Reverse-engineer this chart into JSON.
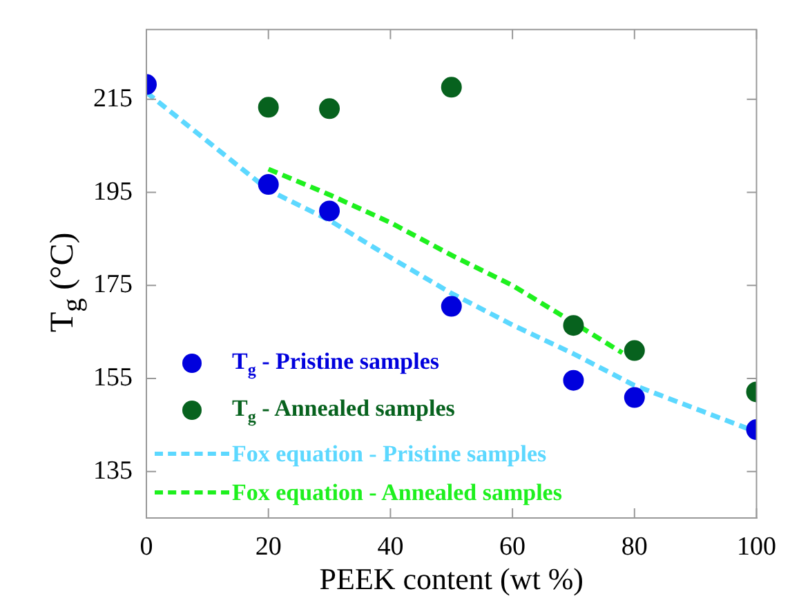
{
  "chart_data": {
    "type": "scatter",
    "xlabel": "PEEK content (wt %)",
    "ylabel": "T$_{g}$ (°C)",
    "xlim": [
      0,
      100
    ],
    "xticks": [
      0,
      20,
      40,
      60,
      80,
      100
    ],
    "ylim": [
      125,
      230
    ],
    "yticks": [
      135,
      155,
      175,
      195,
      215
    ],
    "grid": false,
    "legend": "bottom left",
    "series": [
      {
        "name": "T$_{g}$ - Pristine samples",
        "marker": "circle",
        "color": "#0000dd",
        "x": [
          0,
          20,
          30,
          50,
          70,
          80,
          100
        ],
        "values": [
          218.2,
          196.7,
          191,
          170.5,
          154.6,
          150.9,
          144
        ]
      },
      {
        "name": "T$_{g}$ - Annealed samples",
        "marker": "circle",
        "color": "#07621e",
        "x": [
          20,
          30,
          50,
          70,
          80,
          100
        ],
        "values": [
          213.3,
          213,
          217.6,
          166.4,
          161,
          152.1
        ]
      },
      {
        "name": "Fox equation - Pristine samples",
        "type": "line",
        "line_style": "dashed",
        "color": "#5cd8ff",
        "x": [
          0,
          10,
          20,
          30,
          40,
          50,
          60,
          70,
          80,
          90,
          100
        ],
        "values": [
          216.5,
          206,
          195.5,
          189,
          181,
          173.3,
          166.5,
          160.3,
          153.5,
          148.5,
          143.5
        ]
      },
      {
        "name": "Fox equation - Annealed samples",
        "type": "line",
        "line_style": "dashed",
        "color": "#1ef01e",
        "x": [
          20,
          30,
          40,
          50,
          60,
          70,
          78
        ],
        "values": [
          200,
          194.5,
          188.5,
          181.5,
          175,
          167,
          160.5
        ]
      }
    ]
  }
}
